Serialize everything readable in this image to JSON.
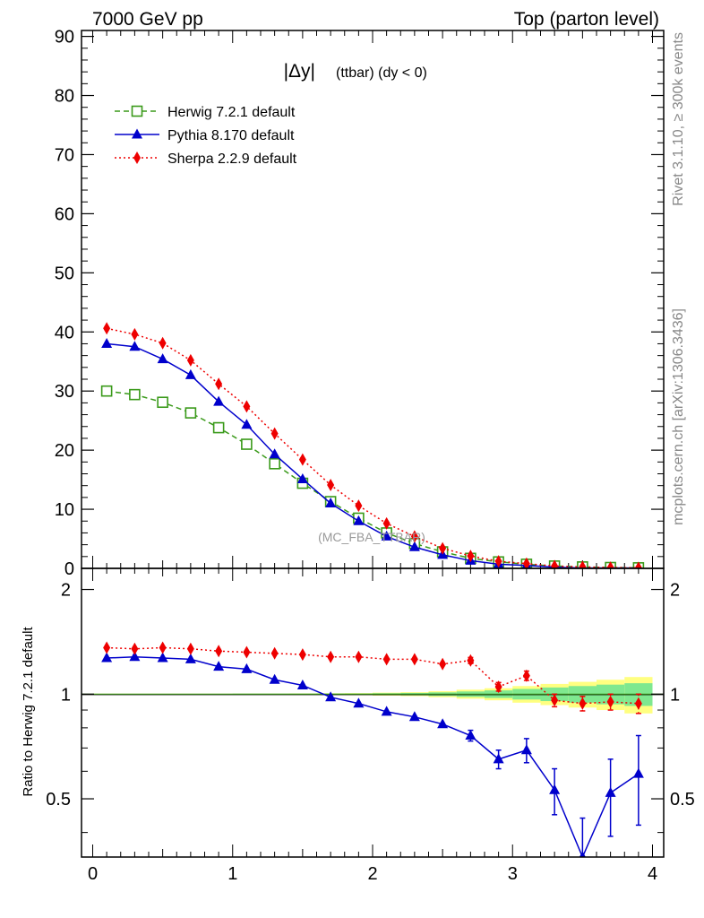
{
  "header": {
    "left": "7000 GeV pp",
    "right": "Top (parton level)"
  },
  "side_labels": {
    "rivet": "Rivet 3.1.10, ≥ 300k events",
    "mcplots": "mcplots.cern.ch [arXiv:1306.3436]"
  },
  "plot_title": {
    "main": "|Δy|",
    "sub": "(ttbar) (dy < 0)"
  },
  "watermark": "(MC_FBA_TTBAR)",
  "chart_data": [
    {
      "type": "line",
      "panel": "main",
      "xlim": [
        -0.08,
        4.08
      ],
      "ylim": [
        0,
        91
      ],
      "yticks": [
        0,
        10,
        20,
        30,
        40,
        50,
        60,
        70,
        80,
        90
      ],
      "ytick_labels": [
        "0",
        "10",
        "20",
        "30",
        "40",
        "50",
        "60",
        "70",
        "80",
        "90"
      ],
      "legend_position": "top-left",
      "x": [
        0.1,
        0.3,
        0.5,
        0.7,
        0.9,
        1.1,
        1.3,
        1.5,
        1.7,
        1.9,
        2.1,
        2.3,
        2.5,
        2.7,
        2.9,
        3.1,
        3.3,
        3.5,
        3.7,
        3.9
      ],
      "series": [
        {
          "name": "Herwig 7.2.1 default",
          "color": "#3a9a1a",
          "marker": "open-square",
          "line": "dashed",
          "values": [
            30.0,
            29.4,
            28.1,
            26.3,
            23.8,
            21.0,
            17.7,
            14.4,
            11.3,
            8.5,
            6.0,
            4.2,
            2.8,
            1.7,
            1.1,
            0.7,
            0.4,
            0.25,
            0.15,
            0.1
          ]
        },
        {
          "name": "Pythia 8.170 default",
          "color": "#0000cc",
          "marker": "filled-triangle",
          "line": "solid",
          "values": [
            38.0,
            37.5,
            35.4,
            32.7,
            28.2,
            24.3,
            19.3,
            15.1,
            11.0,
            8.0,
            5.4,
            3.6,
            2.3,
            1.3,
            0.7,
            0.5,
            0.2,
            0.05,
            0.08,
            0.06
          ]
        },
        {
          "name": "Sherpa 2.2.9 default",
          "color": "#ee0000",
          "marker": "filled-diamond",
          "line": "dotted",
          "values": [
            40.6,
            39.6,
            38.1,
            35.2,
            31.2,
            27.4,
            22.8,
            18.4,
            14.1,
            10.6,
            7.6,
            5.4,
            3.4,
            2.1,
            1.2,
            0.8,
            0.4,
            0.24,
            0.14,
            0.1
          ]
        }
      ]
    },
    {
      "type": "line",
      "panel": "ratio",
      "ylabel": "Ratio to Herwig 7.2.1 default",
      "xlim": [
        -0.08,
        4.08
      ],
      "ylim": [
        0.34,
        2.3
      ],
      "xticks": [
        0,
        1,
        2,
        3,
        4
      ],
      "xtick_labels": [
        "0",
        "1",
        "2",
        "3",
        "4"
      ],
      "yticks": [
        0.5,
        1,
        2
      ],
      "ytick_labels": [
        "0.5",
        "1",
        "2"
      ],
      "x": [
        0.1,
        0.3,
        0.5,
        0.7,
        0.9,
        1.1,
        1.3,
        1.5,
        1.7,
        1.9,
        2.1,
        2.3,
        2.5,
        2.7,
        2.9,
        3.1,
        3.3,
        3.5,
        3.7,
        3.9
      ],
      "reference_band": {
        "x_edges": [
          0,
          0.2,
          0.4,
          0.6,
          0.8,
          1.0,
          1.2,
          1.4,
          1.6,
          1.8,
          2.0,
          2.2,
          2.4,
          2.6,
          2.8,
          3.0,
          3.2,
          3.4,
          3.6,
          3.8,
          4.0
        ],
        "inner_halfwidth": [
          0.002,
          0.002,
          0.002,
          0.002,
          0.002,
          0.003,
          0.003,
          0.003,
          0.004,
          0.004,
          0.006,
          0.008,
          0.012,
          0.018,
          0.025,
          0.035,
          0.045,
          0.055,
          0.065,
          0.075
        ],
        "outer_halfwidth": [
          0.003,
          0.003,
          0.003,
          0.003,
          0.003,
          0.004,
          0.004,
          0.005,
          0.006,
          0.007,
          0.01,
          0.013,
          0.02,
          0.03,
          0.04,
          0.055,
          0.07,
          0.085,
          0.1,
          0.12
        ],
        "inner_color": "#7fe88f",
        "outer_color": "#ffff80"
      },
      "series": [
        {
          "name": "Pythia 8.170 default",
          "color": "#0000cc",
          "marker": "filled-triangle",
          "line": "solid",
          "values": [
            1.27,
            1.28,
            1.27,
            1.26,
            1.2,
            1.18,
            1.1,
            1.06,
            0.98,
            0.94,
            0.89,
            0.86,
            0.82,
            0.76,
            0.65,
            0.69,
            0.53,
            0.34,
            0.52,
            0.59
          ],
          "errors": [
            0.005,
            0.005,
            0.005,
            0.006,
            0.006,
            0.006,
            0.007,
            0.008,
            0.009,
            0.011,
            0.013,
            0.016,
            0.02,
            0.027,
            0.04,
            0.055,
            0.08,
            0.1,
            0.13,
            0.17
          ]
        },
        {
          "name": "Sherpa 2.2.9 default",
          "color": "#ee0000",
          "marker": "filled-diamond",
          "line": "dotted",
          "values": [
            1.36,
            1.35,
            1.36,
            1.35,
            1.33,
            1.32,
            1.31,
            1.3,
            1.28,
            1.28,
            1.26,
            1.26,
            1.22,
            1.25,
            1.05,
            1.13,
            0.96,
            0.94,
            0.95,
            0.94
          ],
          "errors": [
            0.005,
            0.005,
            0.005,
            0.006,
            0.006,
            0.006,
            0.007,
            0.008,
            0.009,
            0.011,
            0.013,
            0.016,
            0.02,
            0.025,
            0.03,
            0.035,
            0.04,
            0.045,
            0.05,
            0.06
          ]
        }
      ]
    }
  ]
}
